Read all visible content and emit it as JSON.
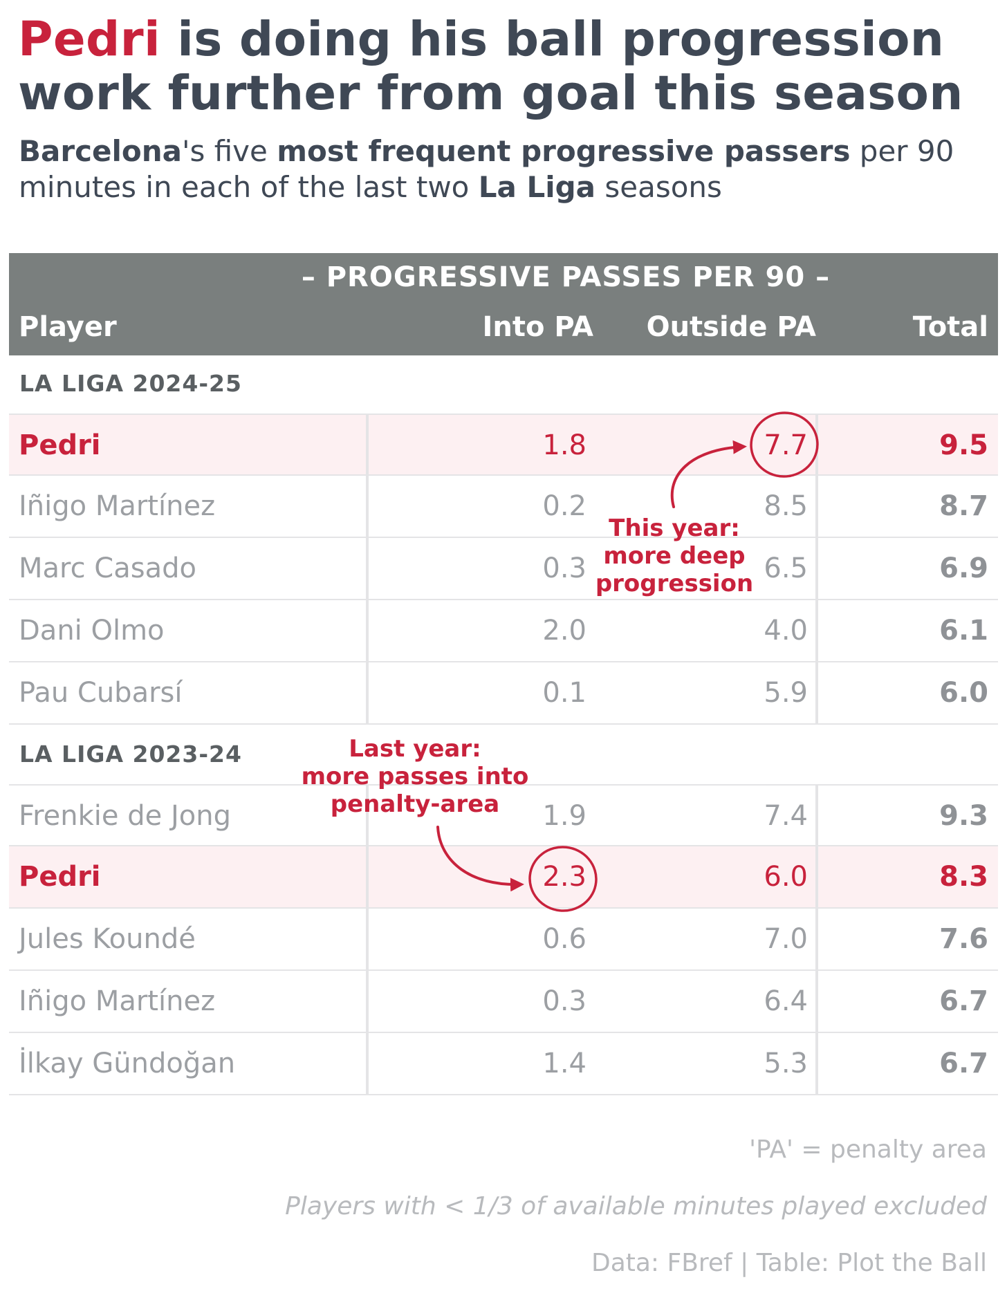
{
  "title": {
    "highlight": "Pedri",
    "rest": " is doing his ball progression work further from goal this season"
  },
  "subtitle": {
    "p1": "Barcelona",
    "p2": "'s five ",
    "p3": "most frequent progressive passers",
    "p4": " per 90 minutes in each of the last two ",
    "p5": "La Liga",
    "p6": " seasons"
  },
  "colors": {
    "accent": "#c8223c",
    "header_bg": "#7a7f7e",
    "highlight_row_bg": "#fdf0f2",
    "text_dark": "#3f4855",
    "text_muted": "#9c9fa3"
  },
  "chart_data": {
    "type": "table",
    "column_group": "– PROGRESSIVE PASSES PER 90 –",
    "columns": [
      "Player",
      "Into PA",
      "Outside PA",
      "Total"
    ],
    "sections": [
      {
        "label": "LA LIGA 2024-25",
        "rows": [
          {
            "player": "Pedri",
            "into": "1.8",
            "outside": "7.7",
            "total": "9.5",
            "highlight": true
          },
          {
            "player": "Iñigo Martínez",
            "into": "0.2",
            "outside": "8.5",
            "total": "8.7"
          },
          {
            "player": "Marc Casado",
            "into": "0.3",
            "outside": "6.5",
            "total": "6.9"
          },
          {
            "player": "Dani Olmo",
            "into": "2.0",
            "outside": "4.0",
            "total": "6.1"
          },
          {
            "player": "Pau Cubarsí",
            "into": "0.1",
            "outside": "5.9",
            "total": "6.0"
          }
        ]
      },
      {
        "label": "LA LIGA 2023-24",
        "rows": [
          {
            "player": "Frenkie de Jong",
            "into": "1.9",
            "outside": "7.4",
            "total": "9.3"
          },
          {
            "player": "Pedri",
            "into": "2.3",
            "outside": "6.0",
            "total": "8.3",
            "highlight": true
          },
          {
            "player": "Jules Koundé",
            "into": "0.6",
            "outside": "7.0",
            "total": "7.6"
          },
          {
            "player": "Iñigo Martínez",
            "into": "0.3",
            "outside": "6.4",
            "total": "6.7"
          },
          {
            "player": "İlkay Gündoğan",
            "into": "1.4",
            "outside": "5.3",
            "total": "6.7"
          }
        ]
      }
    ],
    "annotations": [
      {
        "lines": [
          "This year:",
          "more deep",
          "progression"
        ]
      },
      {
        "lines": [
          "Last year:",
          "more passes into",
          "penalty-area"
        ]
      }
    ]
  },
  "footer": {
    "note1": "'PA' = penalty area",
    "note2": "Players with < 1/3 of available minutes played excluded",
    "source": "Data: FBref | Table: Plot the Ball"
  }
}
